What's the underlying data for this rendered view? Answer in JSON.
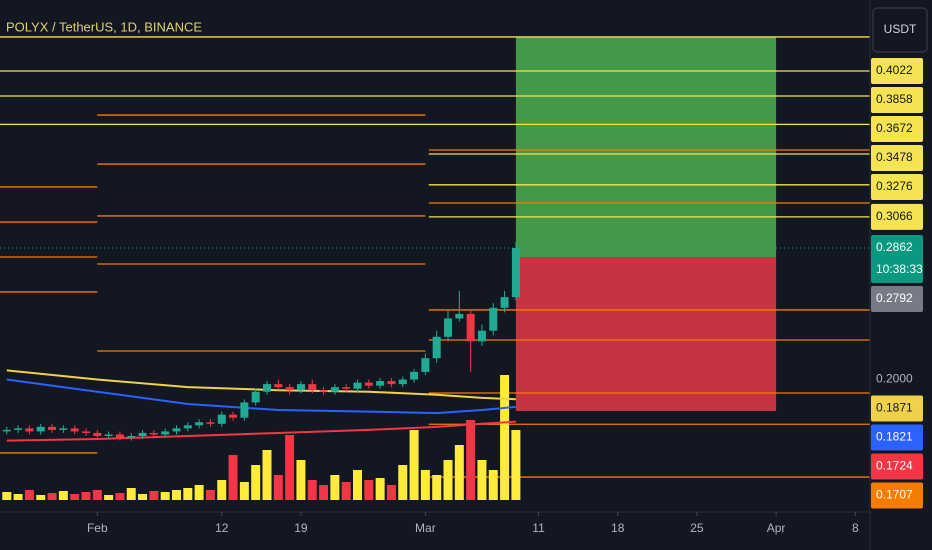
{
  "chart_data": {
    "type": "candlestick",
    "title": "POLYX / TetherUS, 1D, BINANCE",
    "currency": "USDT",
    "countdown": "10:38:33",
    "xlim": [
      23.4,
      100.3
    ],
    "xticks": [
      {
        "value": 32,
        "label": "Feb"
      },
      {
        "value": 43,
        "label": "12"
      },
      {
        "value": 50,
        "label": "19"
      },
      {
        "value": 61,
        "label": "Mar"
      },
      {
        "value": 71,
        "label": "11"
      },
      {
        "value": 78,
        "label": "18"
      },
      {
        "value": 85,
        "label": "25"
      },
      {
        "value": 92,
        "label": "Apr"
      },
      {
        "value": 99,
        "label": "8"
      }
    ],
    "ylim": [
      0.1132,
      0.4487
    ],
    "yticks": [
      {
        "value": 0.2,
        "label": "0.2000"
      }
    ],
    "volume_lim": [
      0,
      130
    ],
    "up_color": "#22ab94",
    "down_color": "#f23645",
    "volume_up_color": "#ffeb3b",
    "volume_down_color": "#f23645",
    "candles": {
      "x": [
        24,
        25,
        26,
        27,
        28,
        29,
        30,
        31,
        32,
        33,
        34,
        35,
        36,
        37,
        38,
        39,
        40,
        41,
        42,
        43,
        44,
        45,
        46,
        47,
        48,
        49,
        50,
        51,
        52,
        53,
        54,
        55,
        56,
        57,
        58,
        59,
        60,
        61,
        62,
        63,
        64,
        65,
        66,
        67,
        68,
        69
      ],
      "open": [
        0.166,
        0.167,
        0.168,
        0.166,
        0.169,
        0.167,
        0.168,
        0.166,
        0.165,
        0.163,
        0.164,
        0.162,
        0.163,
        0.165,
        0.164,
        0.166,
        0.168,
        0.17,
        0.172,
        0.171,
        0.177,
        0.175,
        0.185,
        0.192,
        0.197,
        0.195,
        0.193,
        0.197,
        0.193,
        0.192,
        0.195,
        0.194,
        0.198,
        0.196,
        0.199,
        0.197,
        0.2,
        0.205,
        0.214,
        0.228,
        0.24,
        0.243,
        0.225,
        0.232,
        0.247,
        0.254
      ],
      "high": [
        0.169,
        0.17,
        0.17,
        0.171,
        0.171,
        0.17,
        0.17,
        0.168,
        0.167,
        0.166,
        0.166,
        0.165,
        0.167,
        0.167,
        0.168,
        0.17,
        0.172,
        0.174,
        0.174,
        0.179,
        0.179,
        0.187,
        0.194,
        0.199,
        0.2,
        0.197,
        0.199,
        0.2,
        0.195,
        0.197,
        0.197,
        0.2,
        0.2,
        0.201,
        0.201,
        0.202,
        0.207,
        0.217,
        0.232,
        0.245,
        0.258,
        0.246,
        0.236,
        0.25,
        0.258,
        0.29
      ],
      "low": [
        0.164,
        0.165,
        0.164,
        0.164,
        0.165,
        0.165,
        0.164,
        0.163,
        0.161,
        0.161,
        0.16,
        0.16,
        0.161,
        0.162,
        0.162,
        0.164,
        0.166,
        0.168,
        0.169,
        0.169,
        0.173,
        0.173,
        0.183,
        0.19,
        0.193,
        0.19,
        0.191,
        0.191,
        0.19,
        0.19,
        0.192,
        0.192,
        0.194,
        0.194,
        0.195,
        0.195,
        0.198,
        0.203,
        0.211,
        0.225,
        0.238,
        0.205,
        0.222,
        0.229,
        0.244,
        0.252
      ],
      "close": [
        0.167,
        0.168,
        0.166,
        0.169,
        0.167,
        0.168,
        0.166,
        0.165,
        0.163,
        0.164,
        0.162,
        0.163,
        0.165,
        0.164,
        0.166,
        0.168,
        0.17,
        0.172,
        0.171,
        0.177,
        0.175,
        0.185,
        0.192,
        0.197,
        0.195,
        0.193,
        0.197,
        0.193,
        0.192,
        0.195,
        0.194,
        0.198,
        0.196,
        0.199,
        0.197,
        0.2,
        0.205,
        0.214,
        0.228,
        0.24,
        0.243,
        0.225,
        0.232,
        0.247,
        0.254,
        0.2862
      ],
      "volume": [
        8,
        6,
        10,
        5,
        7,
        9,
        6,
        8,
        10,
        5,
        7,
        12,
        6,
        9,
        8,
        10,
        12,
        15,
        10,
        20,
        45,
        18,
        35,
        50,
        25,
        65,
        40,
        20,
        15,
        25,
        18,
        30,
        20,
        22,
        15,
        35,
        70,
        30,
        25,
        40,
        55,
        80,
        40,
        30,
        125,
        70
      ]
    },
    "series": [
      {
        "color": "#f0d24a",
        "x": [
          24,
          32,
          40,
          48,
          56,
          62,
          66,
          69
        ],
        "values": [
          0.206,
          0.2,
          0.195,
          0.193,
          0.192,
          0.19,
          0.188,
          0.1871
        ]
      },
      {
        "color": "#2962ff",
        "x": [
          24,
          32,
          40,
          48,
          56,
          62,
          66,
          69
        ],
        "values": [
          0.2,
          0.192,
          0.184,
          0.18,
          0.179,
          0.178,
          0.18,
          0.1821
        ]
      },
      {
        "color": "#f23645",
        "x": [
          24,
          32,
          40,
          48,
          56,
          62,
          66,
          69
        ],
        "values": [
          0.16,
          0.161,
          0.163,
          0.165,
          0.167,
          0.169,
          0.171,
          0.1724
        ]
      }
    ],
    "levels": [
      {
        "value": 0.4245,
        "color": "#f5e351",
        "from": 23.4,
        "to": 100.3
      },
      {
        "value": 0.4022,
        "color": "#f5e351",
        "from": 23.4,
        "to": 100.3,
        "label_color": "#131722"
      },
      {
        "value": 0.3858,
        "color": "#f5e351",
        "from": 23.4,
        "to": 100.3,
        "label_color": "#131722"
      },
      {
        "value": 0.3672,
        "color": "#f5e351",
        "from": 23.4,
        "to": 100.3,
        "label_color": "#131722"
      },
      {
        "value": 0.3478,
        "color": "#f5e351",
        "from": 61.3,
        "to": 100.3,
        "label_color": "#131722"
      },
      {
        "value": 0.3276,
        "color": "#f5e351",
        "from": 61.3,
        "to": 100.3,
        "label_color": "#131722"
      },
      {
        "value": 0.3066,
        "color": "#f5e351",
        "from": 61.3,
        "to": 100.3,
        "label_color": "#131722"
      },
      {
        "value": 0.3262,
        "color": "#f57c00",
        "from": 23.4,
        "to": 32
      },
      {
        "value": 0.3032,
        "color": "#f57c00",
        "from": 23.4,
        "to": 32
      },
      {
        "value": 0.2803,
        "color": "#f57c00",
        "from": 23.4,
        "to": 32
      },
      {
        "value": 0.2574,
        "color": "#f57c00",
        "from": 23.4,
        "to": 32
      },
      {
        "value": 0.1519,
        "color": "#f57c00",
        "from": 23.4,
        "to": 32
      },
      {
        "value": 0.3733,
        "color": "#f57c00",
        "from": 32,
        "to": 61
      },
      {
        "value": 0.3412,
        "color": "#f57c00",
        "from": 32,
        "to": 61
      },
      {
        "value": 0.3072,
        "color": "#f57c00",
        "from": 32,
        "to": 61
      },
      {
        "value": 0.2757,
        "color": "#f57c00",
        "from": 32,
        "to": 61
      },
      {
        "value": 0.2187,
        "color": "#f57c00",
        "from": 32,
        "to": 61
      },
      {
        "value": 0.3504,
        "color": "#f57c00",
        "from": 61.3,
        "to": 100.3
      },
      {
        "value": 0.3157,
        "color": "#f57c00",
        "from": 61.3,
        "to": 100.3
      },
      {
        "value": 0.2456,
        "color": "#f57c00",
        "from": 61.3,
        "to": 100.3
      },
      {
        "value": 0.2259,
        "color": "#f57c00",
        "from": 61.3,
        "to": 100.3
      },
      {
        "value": 0.1912,
        "color": "#f57c00",
        "from": 61.3,
        "to": 100.3
      },
      {
        "value": 0.1707,
        "color": "#f57c00",
        "from": 61.3,
        "to": 100.3,
        "label_color": "#ffffff"
      },
      {
        "value": 0.1361,
        "color": "#f57c00",
        "from": 61.3,
        "to": 100.3
      }
    ],
    "marker_labels": [
      {
        "value": 0.2792,
        "color": "#787b86"
      }
    ],
    "last_price_color": "#089981",
    "position": {
      "from": 69,
      "to": 92,
      "target": 0.4245,
      "entry": 0.2803,
      "stop": 0.1794,
      "profit_color": "#4caf50",
      "loss_color": "#e53945"
    }
  }
}
